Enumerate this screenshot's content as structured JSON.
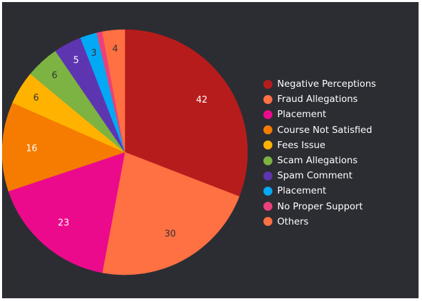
{
  "chart_data": {
    "type": "pie",
    "categories": [
      "Negative Perceptions",
      "Fraud Allegations",
      "Placement",
      "Course Not Satisfied",
      "Fees Issue",
      "Scam Allegations",
      "Spam Comment",
      "Placement",
      "No Proper Support",
      "Others"
    ],
    "values": [
      42,
      30,
      23,
      16,
      6,
      6,
      5,
      3,
      1,
      4
    ],
    "data_labels": [
      "42",
      "30",
      "23",
      "16",
      "6",
      "6",
      "5",
      "3",
      "",
      "4"
    ],
    "colors": [
      "#b71c1c",
      "#ff7043",
      "#ec0a8c",
      "#f57c00",
      "#ffb300",
      "#7cb342",
      "#5e35b1",
      "#03a9f4",
      "#ec407a",
      "#ff7043"
    ],
    "label_colors": [
      "#ffffff",
      "#333333",
      "#ffffff",
      "#ffffff",
      "#333333",
      "#333333",
      "#ffffff",
      "#333333",
      "#333333",
      "#333333"
    ],
    "start_angle_deg": 0,
    "direction": "clockwise",
    "legend_position": "right",
    "background": "#2c2d33"
  }
}
